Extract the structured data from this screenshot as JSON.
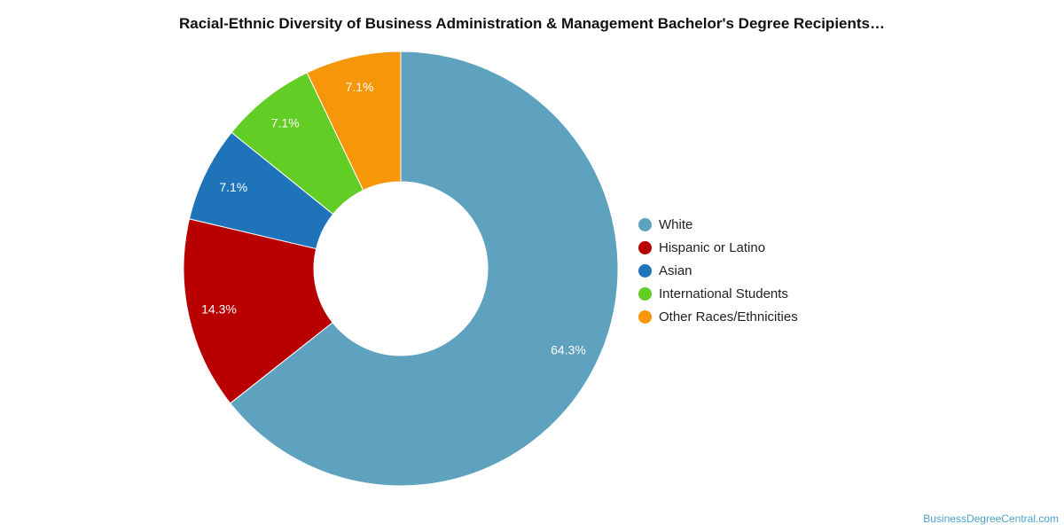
{
  "chart_data": {
    "type": "pie",
    "title": "Racial-Ethnic Diversity of Business Administration & Management Bachelor's Degree Recipients…",
    "donut": true,
    "categories": [
      "White",
      "Hispanic or Latino",
      "Asian",
      "International Students",
      "Other Races/Ethnicities"
    ],
    "values": [
      64.3,
      14.3,
      7.1,
      7.1,
      7.1
    ],
    "data_labels": [
      "64.3%",
      "14.3%",
      "7.1%",
      "7.1%",
      "7.1%"
    ],
    "colors": [
      "#5ea2bf",
      "#b80000",
      "#1f74b9",
      "#62cd24",
      "#f79608"
    ],
    "legend_position": "right",
    "grid": false
  },
  "watermark": "BusinessDegreeCentral.com"
}
